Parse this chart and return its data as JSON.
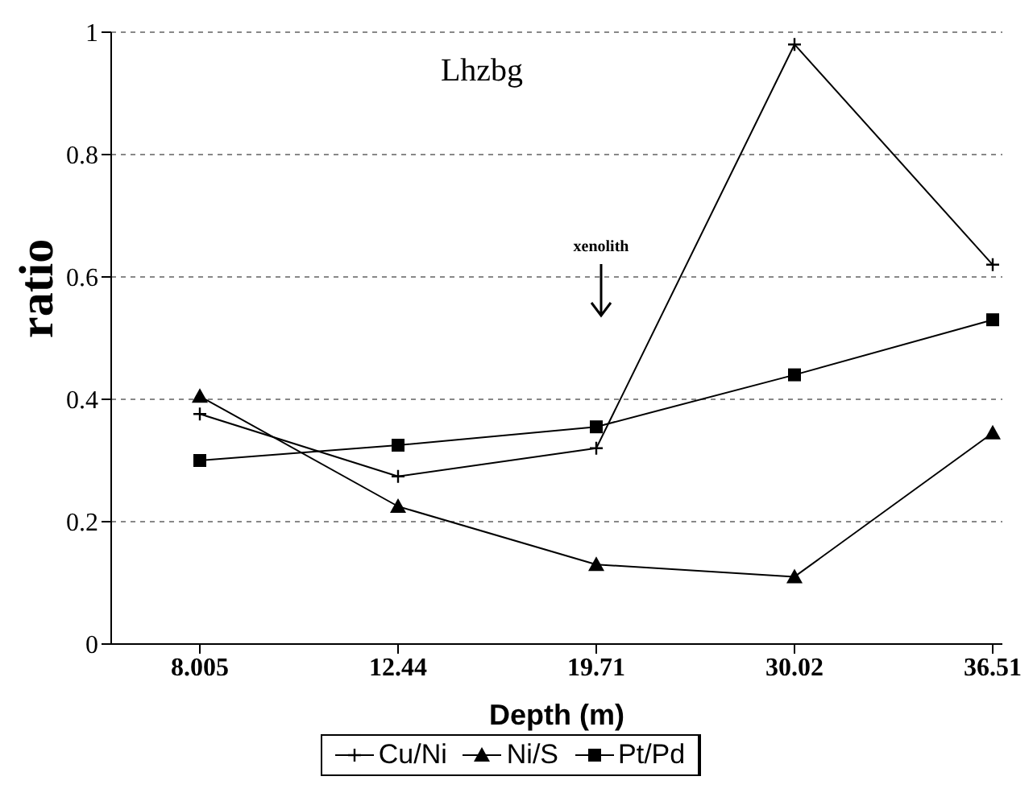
{
  "chart_data": {
    "type": "line",
    "xlabel": "Depth (m)",
    "ylabel": "ratio",
    "categories": [
      "8.005",
      "12.44",
      "19.71",
      "30.02",
      "36.51"
    ],
    "series": [
      {
        "name": "Cu/Ni",
        "color": "#000000",
        "marker": "cross",
        "values": [
          0.376,
          0.274,
          0.32,
          0.98,
          0.62
        ]
      },
      {
        "name": "Ni/S",
        "color": "#000000",
        "marker": "triangle",
        "values": [
          0.405,
          0.225,
          0.13,
          0.11,
          0.345
        ]
      },
      {
        "name": "Pt/Pd",
        "color": "#000000",
        "marker": "square",
        "values": [
          0.3,
          0.325,
          0.355,
          0.44,
          0.53
        ]
      }
    ],
    "ylim": [
      0,
      1
    ],
    "yticks": [
      0,
      0.2,
      0.4,
      0.6,
      0.8,
      1
    ],
    "grid": "y",
    "legend": "bottom",
    "line_style": "solid",
    "annotations": [
      "Lhzbg",
      "xenolith"
    ]
  }
}
